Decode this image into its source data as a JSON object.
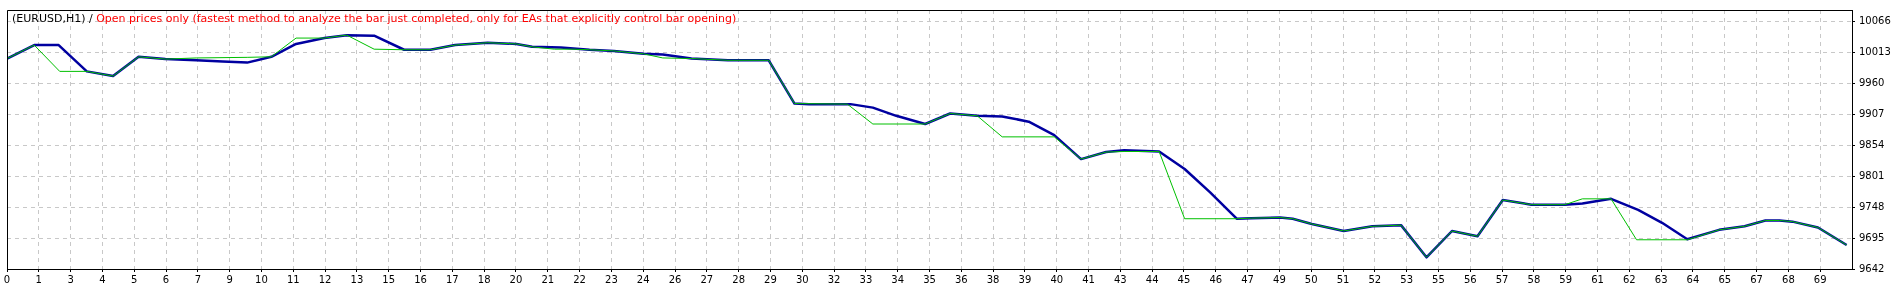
{
  "chart_data": {
    "type": "line",
    "title": "(EURUSD,H1) /",
    "subtitle": "Open prices only (fastest method to analyze the bar just completed, only for EAs that explicitly control bar opening)",
    "xlim": [
      0.155,
      70.335
    ],
    "xticks": [
      {
        "value": 0.155,
        "label": "0"
      },
      {
        "value": 1.365,
        "label": "1"
      },
      {
        "value": 2.575,
        "label": "3"
      },
      {
        "value": 3.785,
        "label": "4"
      },
      {
        "value": 4.995,
        "label": "5"
      },
      {
        "value": 6.205,
        "label": "6"
      },
      {
        "value": 7.415,
        "label": "7"
      },
      {
        "value": 8.625,
        "label": "9"
      },
      {
        "value": 9.835,
        "label": "10"
      },
      {
        "value": 11.045,
        "label": "11"
      },
      {
        "value": 12.255,
        "label": "12"
      },
      {
        "value": 13.465,
        "label": "13"
      },
      {
        "value": 14.675,
        "label": "15"
      },
      {
        "value": 15.885,
        "label": "16"
      },
      {
        "value": 17.095,
        "label": "17"
      },
      {
        "value": 18.305,
        "label": "18"
      },
      {
        "value": 19.515,
        "label": "20"
      },
      {
        "value": 20.725,
        "label": "21"
      },
      {
        "value": 21.935,
        "label": "22"
      },
      {
        "value": 23.145,
        "label": "23"
      },
      {
        "value": 24.355,
        "label": "24"
      },
      {
        "value": 25.565,
        "label": "26"
      },
      {
        "value": 26.775,
        "label": "27"
      },
      {
        "value": 27.985,
        "label": "28"
      },
      {
        "value": 29.195,
        "label": "29"
      },
      {
        "value": 30.405,
        "label": "30"
      },
      {
        "value": 31.615,
        "label": "32"
      },
      {
        "value": 32.825,
        "label": "33"
      },
      {
        "value": 34.035,
        "label": "34"
      },
      {
        "value": 35.245,
        "label": "35"
      },
      {
        "value": 36.455,
        "label": "36"
      },
      {
        "value": 37.665,
        "label": "38"
      },
      {
        "value": 38.875,
        "label": "39"
      },
      {
        "value": 40.085,
        "label": "40"
      },
      {
        "value": 41.295,
        "label": "41"
      },
      {
        "value": 42.505,
        "label": "43"
      },
      {
        "value": 43.715,
        "label": "44"
      },
      {
        "value": 44.925,
        "label": "45"
      },
      {
        "value": 46.135,
        "label": "46"
      },
      {
        "value": 47.345,
        "label": "47"
      },
      {
        "value": 48.555,
        "label": "49"
      },
      {
        "value": 49.765,
        "label": "50"
      },
      {
        "value": 50.975,
        "label": "51"
      },
      {
        "value": 52.185,
        "label": "52"
      },
      {
        "value": 53.395,
        "label": "53"
      },
      {
        "value": 54.605,
        "label": "55"
      },
      {
        "value": 55.815,
        "label": "56"
      },
      {
        "value": 57.025,
        "label": "57"
      },
      {
        "value": 58.235,
        "label": "58"
      },
      {
        "value": 59.445,
        "label": "59"
      },
      {
        "value": 60.655,
        "label": "61"
      },
      {
        "value": 61.865,
        "label": "62"
      },
      {
        "value": 63.075,
        "label": "63"
      },
      {
        "value": 64.285,
        "label": "64"
      },
      {
        "value": 65.495,
        "label": "65"
      },
      {
        "value": 66.705,
        "label": "67"
      },
      {
        "value": 67.915,
        "label": "68"
      },
      {
        "value": 69.125,
        "label": "69"
      }
    ],
    "ylim": [
      9642,
      10085
    ],
    "yticks": [
      9642,
      9695,
      9748,
      9801,
      9854,
      9907,
      9960,
      10013,
      10066
    ],
    "grid": true,
    "legend": false,
    "marker": "none",
    "line_style": "solid",
    "series": [
      {
        "color": "#00c000",
        "x": [
          0.16,
          1.19,
          2.16,
          3.19,
          4.19,
          5.16,
          6.18,
          7.35,
          9.29,
          10.21,
          11.15,
          12.23,
          13.08,
          14.12,
          15.26,
          16.26,
          17.2,
          18.44,
          19.53,
          20.13,
          20.98,
          21.71,
          22.31,
          23.24,
          24.37,
          25.1,
          26.19,
          27.58,
          29.13,
          30.11,
          32.12,
          33.09,
          35.08,
          36.03,
          37.06,
          38.01,
          39.99,
          41.01,
          41.96,
          42.65,
          43.98,
          44.95,
          46.93,
          47.49,
          48.58,
          49.06,
          49.79,
          51.0,
          52.09,
          53.18,
          54.15,
          55.12,
          56.09,
          57.05,
          58.14,
          59.41,
          60.08,
          61.17,
          62.14,
          64.07,
          65.28,
          66.25,
          67.04,
          67.58,
          68.07,
          69.04,
          70.13
        ],
        "values": [
          10002,
          10025,
          9980,
          9980,
          9972,
          10005,
          10001,
          10003,
          10004,
          10005,
          10037,
          10037,
          10042,
          10018,
          10017,
          10017,
          10025,
          10029,
          10027,
          10022,
          10018,
          10018,
          10017,
          10015,
          10010,
          10003,
          10002,
          9999,
          9999,
          9925,
          9924,
          9890,
          9890,
          9908,
          9904,
          9868,
          9868,
          9830,
          9842,
          9843,
          9843,
          9728,
          9728,
          9729,
          9730,
          9728,
          9719,
          9707,
          9715,
          9717,
          9662,
          9707,
          9698,
          9760,
          9752,
          9752,
          9762,
          9762,
          9692,
          9692,
          9709,
          9715,
          9725,
          9725,
          9723,
          9713,
          9683
        ]
      },
      {
        "color": "#0000a0",
        "x": [
          0.16,
          1.19,
          2.12,
          3.19,
          4.19,
          5.16,
          6.18,
          7.35,
          8.36,
          9.29,
          10.21,
          11.15,
          12.23,
          13.08,
          14.12,
          15.26,
          16.26,
          17.2,
          18.44,
          19.53,
          20.13,
          21.22,
          22.31,
          23.24,
          24.37,
          25.1,
          26.19,
          27.58,
          29.13,
          30.11,
          30.66,
          32.24,
          33.09,
          33.98,
          35.08,
          36.03,
          37.06,
          38.01,
          39.02,
          39.99,
          41.01,
          41.96,
          42.65,
          43.98,
          44.95,
          45.92,
          46.93,
          47.49,
          48.58,
          49.06,
          49.79,
          51.0,
          52.09,
          53.18,
          54.15,
          55.12,
          56.09,
          57.05,
          58.14,
          59.41,
          60.08,
          61.17,
          62.2,
          63.11,
          64.07,
          65.28,
          66.25,
          67.04,
          67.58,
          68.07,
          69.04,
          70.13
        ],
        "values": [
          10002,
          10025,
          10025,
          9980,
          9972,
          10005,
          10001,
          9999,
          9997,
          9995,
          10005,
          10027,
          10037,
          10042,
          10041,
          10017,
          10017,
          10025,
          10029,
          10027,
          10022,
          10021,
          10017,
          10015,
          10010,
          10009,
          10002,
          9999,
          9999,
          9925,
          9924,
          9924,
          9918,
          9904,
          9890,
          9908,
          9904,
          9903,
          9894,
          9871,
          9830,
          9842,
          9845,
          9843,
          9813,
          9773,
          9728,
          9729,
          9730,
          9728,
          9719,
          9707,
          9715,
          9717,
          9662,
          9707,
          9698,
          9760,
          9752,
          9752,
          9754,
          9762,
          9743,
          9721,
          9693,
          9709,
          9715,
          9725,
          9725,
          9723,
          9713,
          9683
        ]
      }
    ]
  }
}
